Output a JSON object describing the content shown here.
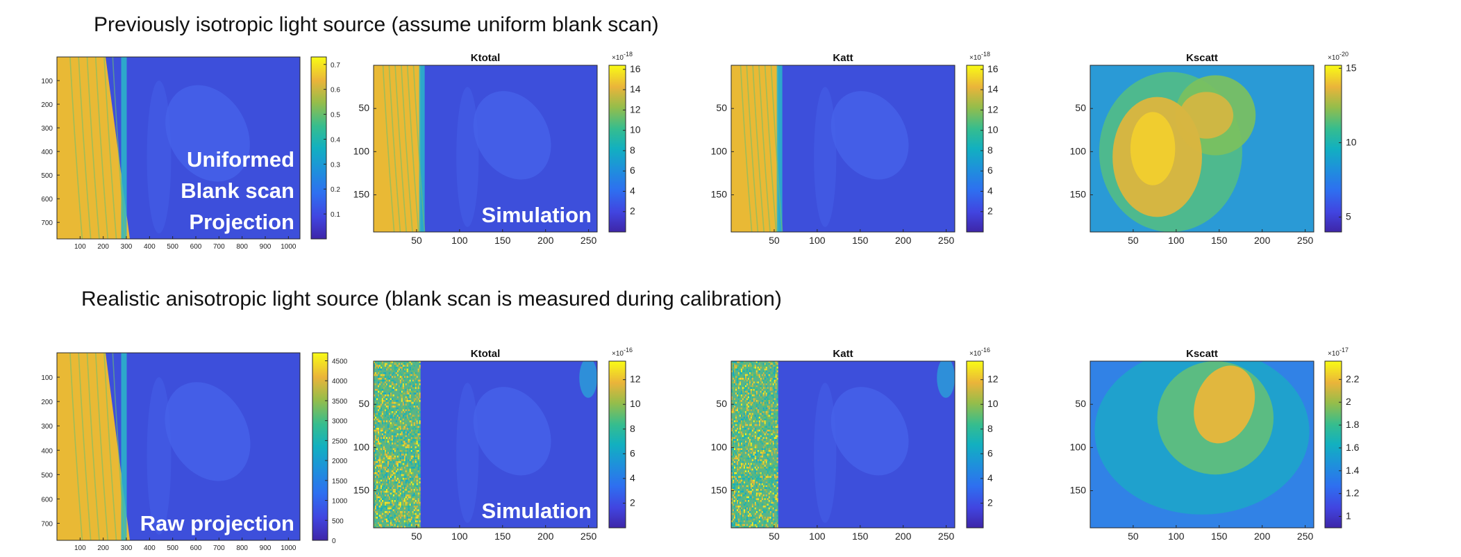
{
  "sections": [
    {
      "title": "Previously isotropic light source (assume uniform blank scan)"
    },
    {
      "title": "Realistic anisotropic light source (blank scan is measured during calibration)"
    }
  ],
  "colors": {
    "parula_low": "#3e26a8",
    "parula_mid": "#12b5a6",
    "parula_high": "#f9fb15",
    "blank_scan": "#edb72e",
    "beam_body": "#3a4fd9"
  },
  "chart_data": [
    {
      "type": "heatmap",
      "id": "r1-projection",
      "title": "",
      "x_ticks": [
        "100",
        "200",
        "300",
        "400",
        "500",
        "600",
        "700",
        "800",
        "900",
        "1000"
      ],
      "y_ticks": [
        "100",
        "200",
        "300",
        "400",
        "500",
        "600",
        "700"
      ],
      "colorbar_ticks": [
        "0.1",
        "0.2",
        "0.3",
        "0.4",
        "0.5",
        "0.6",
        "0.7"
      ],
      "colorbar_exponent": "",
      "overlay_lines": [
        "Uniformed",
        "Blank scan",
        "Projection"
      ],
      "xlim": [
        0,
        1050
      ],
      "ylim": [
        0,
        770
      ],
      "clim": [
        0,
        0.73
      ],
      "pattern": "projection"
    },
    {
      "type": "heatmap",
      "id": "r1-ktotal",
      "title": "Ktotal",
      "x_ticks": [
        "50",
        "100",
        "150",
        "200",
        "250"
      ],
      "y_ticks": [
        "50",
        "100",
        "150"
      ],
      "colorbar_ticks": [
        "2",
        "4",
        "6",
        "8",
        "10",
        "12",
        "14",
        "16"
      ],
      "colorbar_exponent": "×10-18",
      "overlay_lines": [
        "Simulation"
      ],
      "xlim": [
        0,
        260
      ],
      "ylim": [
        0,
        193
      ],
      "clim": [
        0,
        16.4
      ],
      "pattern": "smooth"
    },
    {
      "type": "heatmap",
      "id": "r1-katt",
      "title": "Katt",
      "x_ticks": [
        "50",
        "100",
        "150",
        "200",
        "250"
      ],
      "y_ticks": [
        "50",
        "100",
        "150"
      ],
      "colorbar_ticks": [
        "2",
        "4",
        "6",
        "8",
        "10",
        "12",
        "14",
        "16"
      ],
      "colorbar_exponent": "×10-18",
      "overlay_lines": [],
      "xlim": [
        0,
        260
      ],
      "ylim": [
        0,
        193
      ],
      "clim": [
        0,
        16.4
      ],
      "pattern": "smooth"
    },
    {
      "type": "heatmap",
      "id": "r1-kscatt",
      "title": "Kscatt",
      "x_ticks": [
        "50",
        "100",
        "150",
        "200",
        "250"
      ],
      "y_ticks": [
        "50",
        "100",
        "150"
      ],
      "colorbar_ticks": [
        "5",
        "10",
        "15"
      ],
      "colorbar_exponent": "×10-20",
      "overlay_lines": [],
      "xlim": [
        0,
        260
      ],
      "ylim": [
        0,
        193
      ],
      "clim": [
        4.0,
        15.2
      ],
      "pattern": "heart"
    },
    {
      "type": "heatmap",
      "id": "r2-projection",
      "title": "",
      "x_ticks": [
        "100",
        "200",
        "300",
        "400",
        "500",
        "600",
        "700",
        "800",
        "900",
        "1000"
      ],
      "y_ticks": [
        "100",
        "200",
        "300",
        "400",
        "500",
        "600",
        "700"
      ],
      "colorbar_ticks": [
        "0",
        "500",
        "1000",
        "1500",
        "2000",
        "2500",
        "3000",
        "3500",
        "4000",
        "4500"
      ],
      "colorbar_exponent": "",
      "overlay_lines": [
        "Raw projection"
      ],
      "xlim": [
        0,
        1050
      ],
      "ylim": [
        0,
        770
      ],
      "clim": [
        0,
        4700
      ],
      "pattern": "projection"
    },
    {
      "type": "heatmap",
      "id": "r2-ktotal",
      "title": "Ktotal",
      "x_ticks": [
        "50",
        "100",
        "150",
        "200",
        "250"
      ],
      "y_ticks": [
        "50",
        "100",
        "150"
      ],
      "colorbar_ticks": [
        "2",
        "4",
        "6",
        "8",
        "10",
        "12"
      ],
      "colorbar_exponent": "×10-16",
      "overlay_lines": [
        "Simulation"
      ],
      "xlim": [
        0,
        260
      ],
      "ylim": [
        0,
        193
      ],
      "clim": [
        0,
        13.5
      ],
      "pattern": "noisy"
    },
    {
      "type": "heatmap",
      "id": "r2-katt",
      "title": "Katt",
      "x_ticks": [
        "50",
        "100",
        "150",
        "200",
        "250"
      ],
      "y_ticks": [
        "50",
        "100",
        "150"
      ],
      "colorbar_ticks": [
        "2",
        "4",
        "6",
        "8",
        "10",
        "12"
      ],
      "colorbar_exponent": "×10-16",
      "overlay_lines": [],
      "xlim": [
        0,
        260
      ],
      "ylim": [
        0,
        193
      ],
      "clim": [
        0,
        13.5
      ],
      "pattern": "noisy"
    },
    {
      "type": "heatmap",
      "id": "r2-kscatt",
      "title": "Kscatt",
      "x_ticks": [
        "50",
        "100",
        "150",
        "200",
        "250"
      ],
      "y_ticks": [
        "50",
        "100",
        "150"
      ],
      "colorbar_ticks": [
        "1",
        "1.2",
        "1.4",
        "1.6",
        "1.8",
        "2",
        "2.2"
      ],
      "colorbar_exponent": "×10-17",
      "overlay_lines": [],
      "xlim": [
        0,
        260
      ],
      "ylim": [
        0,
        193
      ],
      "clim": [
        0.9,
        2.36
      ],
      "pattern": "blob"
    }
  ]
}
